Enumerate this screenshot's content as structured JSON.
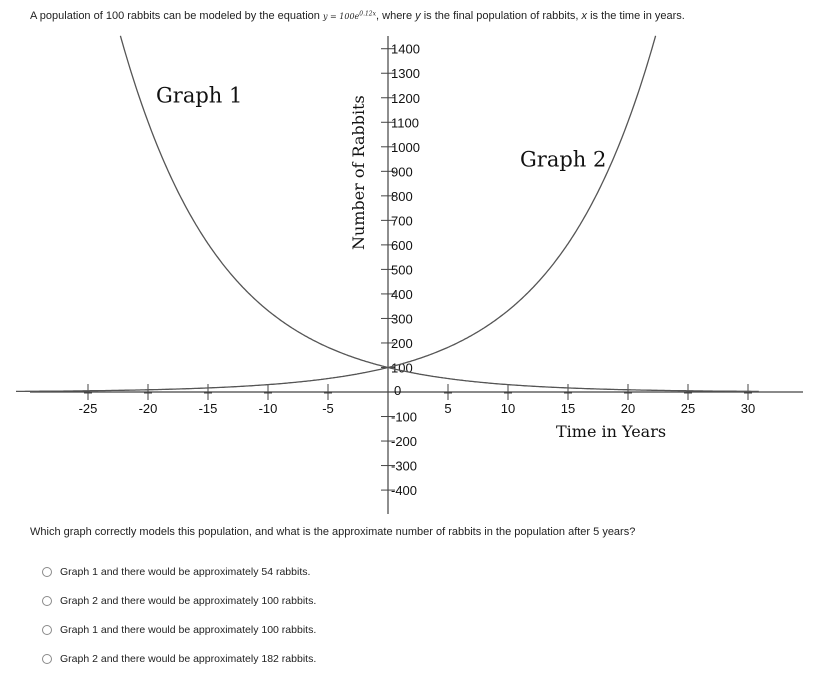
{
  "question": {
    "part1": "A population of 100 rabbits can be modeled by the equation",
    "equation": "y = 100e",
    "exponent": "0.12x",
    "part2": ", where",
    "var_y": "y",
    "part3": "is the final population of rabbits,",
    "var_x": "x",
    "part4": "is the time in years."
  },
  "chart_data": {
    "type": "line",
    "xlabel": "Time in Years",
    "ylabel": "Number of Rabbits",
    "xlim": [
      -28,
      35
    ],
    "ylim": [
      -500,
      1460
    ],
    "x_ticks": [
      -25,
      -20,
      -15,
      -10,
      -5,
      5,
      10,
      15,
      20,
      25,
      30
    ],
    "y_ticks": [
      -400,
      -300,
      -200,
      -100,
      0,
      100,
      200,
      300,
      400,
      500,
      600,
      700,
      800,
      900,
      1000,
      1100,
      1200,
      1300,
      1400
    ],
    "grid": false,
    "series": [
      {
        "name": "Graph 1",
        "formula": "y = 100e^(-0.12x)",
        "label_at": [
          -15,
          1180
        ]
      },
      {
        "name": "Graph 2",
        "formula": "y = 100e^(0.12x)",
        "label_at": [
          14,
          920
        ]
      }
    ]
  },
  "prompt": "Which graph correctly models this population, and what is the approximate number of rabbits in the population after 5 years?",
  "options": [
    "Graph 1 and there would be approximately 54 rabbits.",
    "Graph 2 and there would be approximately 100 rabbits.",
    "Graph 1 and there would be approximately 100 rabbits.",
    "Graph 2 and there would be approximately 182 rabbits."
  ]
}
